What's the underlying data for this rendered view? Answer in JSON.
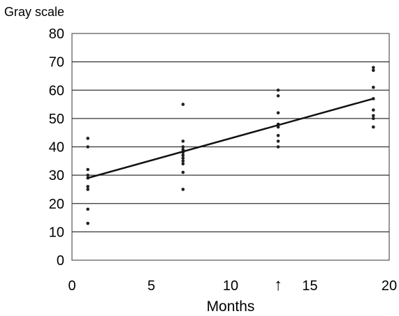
{
  "chart_data": {
    "type": "scatter",
    "ylabel": "Gray scale",
    "xlabel": "Months",
    "xlim": [
      0,
      20
    ],
    "ylim": [
      0,
      80
    ],
    "x_ticks": [
      0,
      5,
      10,
      15,
      20
    ],
    "y_ticks": [
      0,
      10,
      20,
      30,
      40,
      50,
      60,
      70,
      80
    ],
    "grid": "horizontal",
    "marker_symbol": "↑",
    "marker_x": 13,
    "series": [
      {
        "points": [
          [
            1,
            43
          ],
          [
            1,
            40
          ],
          [
            1,
            32
          ],
          [
            1,
            30
          ],
          [
            1,
            29
          ],
          [
            1,
            26
          ],
          [
            1,
            25
          ],
          [
            1,
            18
          ],
          [
            1,
            13
          ],
          [
            7,
            55
          ],
          [
            7,
            42
          ],
          [
            7,
            40
          ],
          [
            7,
            39
          ],
          [
            7,
            38
          ],
          [
            7,
            37
          ],
          [
            7,
            36
          ],
          [
            7,
            35
          ],
          [
            7,
            34
          ],
          [
            7,
            31
          ],
          [
            7,
            25
          ],
          [
            13,
            60
          ],
          [
            13,
            58
          ],
          [
            13,
            52
          ],
          [
            13,
            48
          ],
          [
            13,
            47
          ],
          [
            13,
            44
          ],
          [
            13,
            42
          ],
          [
            13,
            40
          ],
          [
            19,
            68
          ],
          [
            19,
            67
          ],
          [
            19,
            61
          ],
          [
            19,
            57
          ],
          [
            19,
            53
          ],
          [
            19,
            51
          ],
          [
            19,
            50
          ],
          [
            19,
            47
          ]
        ]
      }
    ],
    "trendline": {
      "x": [
        1,
        19
      ],
      "y": [
        29,
        57
      ]
    }
  }
}
